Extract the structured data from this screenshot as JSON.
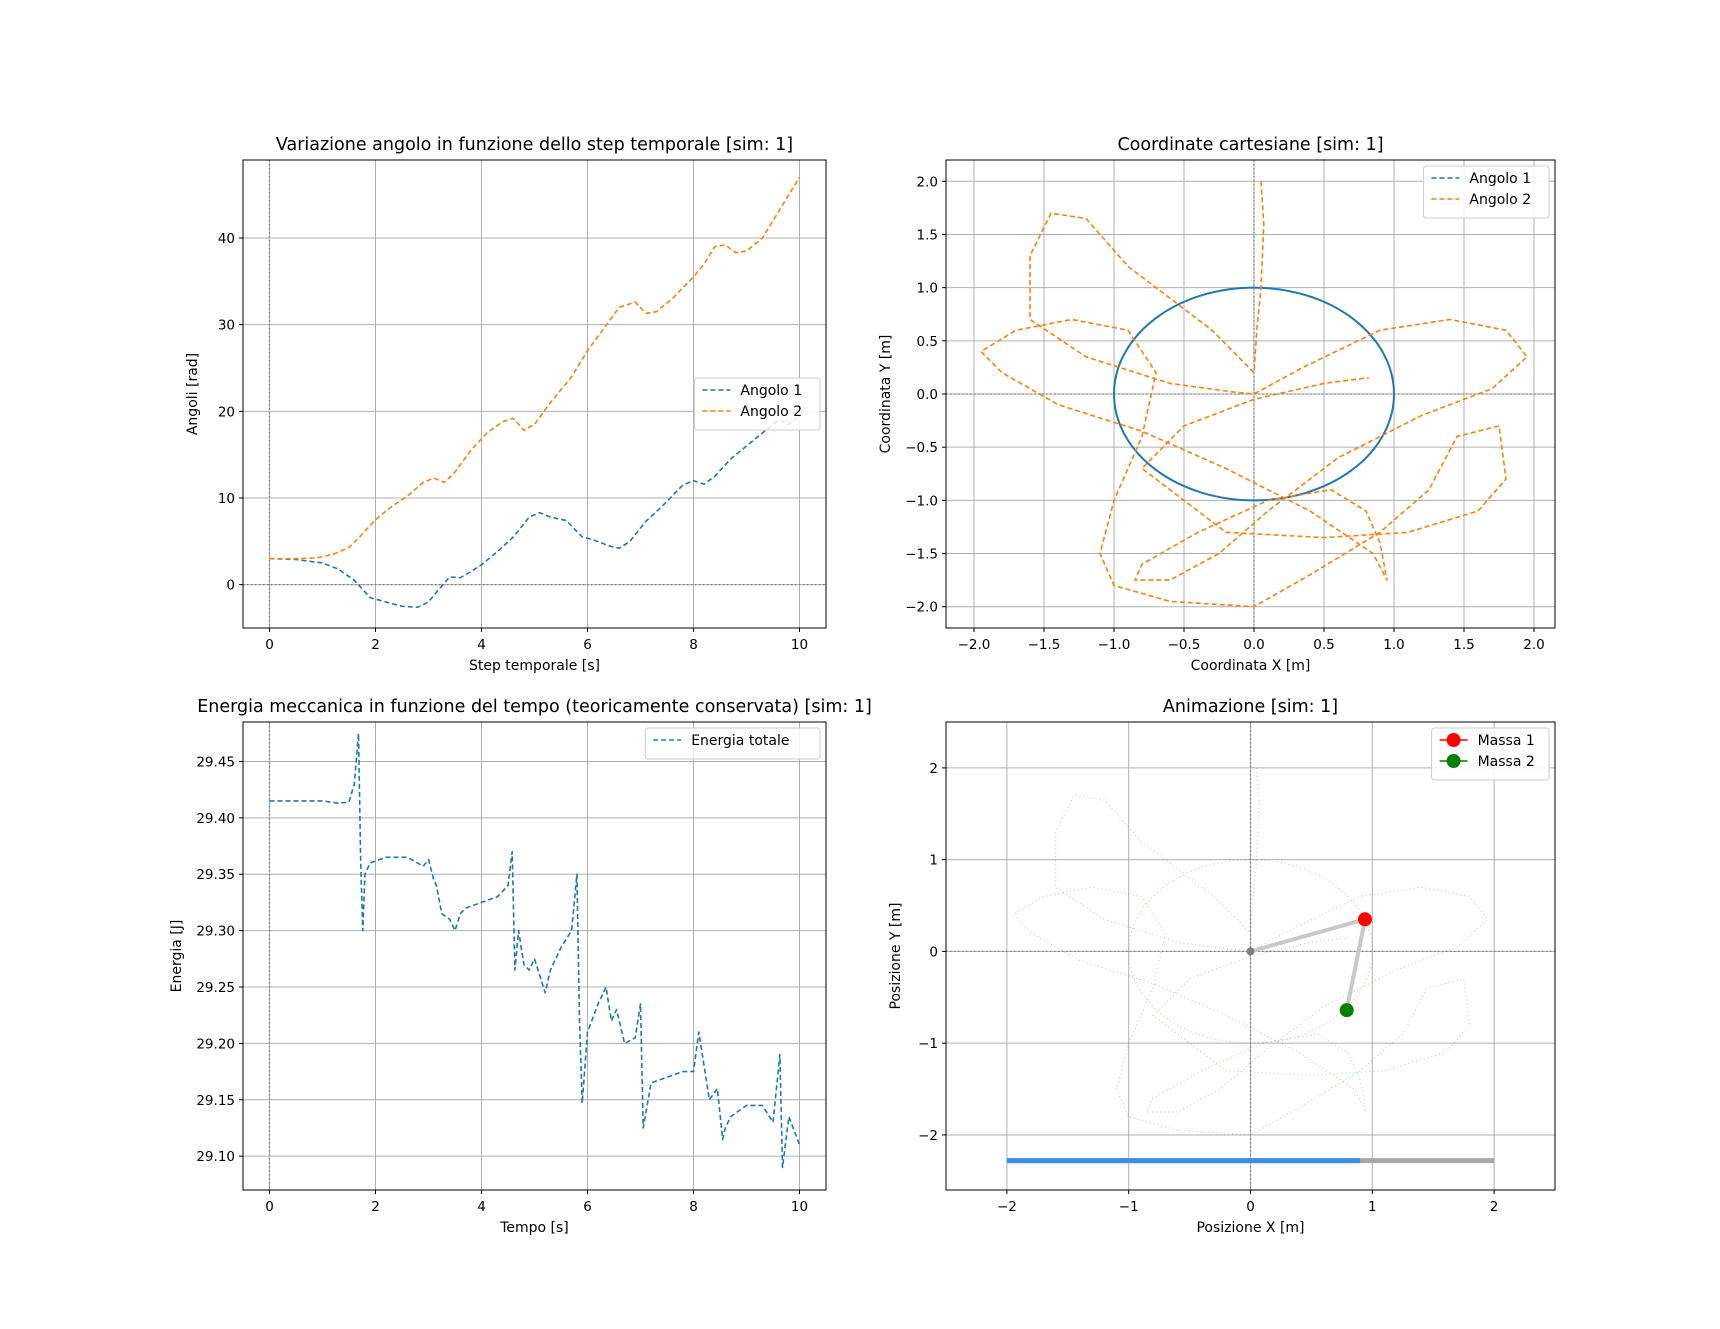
{
  "colors": {
    "blue": "#1f77b4",
    "orange": "#ff7f0e",
    "red": "#ff0000",
    "green": "#008000",
    "progress_fill": "#3a8ee6",
    "progress_track": "#a8a8a8",
    "arm": "#c8c8c8"
  },
  "chart_data": [
    {
      "type": "line",
      "title": "Variazione angolo in funzione dello step temporale [sim: 1]",
      "xlabel": "Step temporale [s]",
      "ylabel": "Angoli [rad]",
      "xlim": [
        -0.5,
        10.5
      ],
      "ylim": [
        -5,
        49
      ],
      "xticks": [
        0,
        2,
        4,
        6,
        8,
        10
      ],
      "xtick_labels": [
        "0",
        "2",
        "4",
        "6",
        "8",
        "10"
      ],
      "yticks": [
        0,
        10,
        20,
        30,
        40
      ],
      "ytick_labels": [
        "0",
        "10",
        "20",
        "30",
        "40"
      ],
      "grid": true,
      "legend_position": "center-right",
      "series": [
        {
          "name": "Angolo 1",
          "color": "#1f77b4",
          "style": "dashed",
          "x": [
            0,
            0.5,
            1,
            1.3,
            1.6,
            1.9,
            2.2,
            2.5,
            2.8,
            3.0,
            3.2,
            3.4,
            3.6,
            3.8,
            4.0,
            4.3,
            4.6,
            4.9,
            5.1,
            5.3,
            5.6,
            5.9,
            6.1,
            6.4,
            6.6,
            6.8,
            7.1,
            7.4,
            7.8,
            8.0,
            8.2,
            8.4,
            8.7,
            9.0,
            9.3,
            9.6,
            9.8,
            10.0
          ],
          "y": [
            3.0,
            2.9,
            2.5,
            1.8,
            0.5,
            -1.5,
            -2.0,
            -2.5,
            -2.6,
            -2.0,
            -0.5,
            0.9,
            0.8,
            1.5,
            2.3,
            3.8,
            5.5,
            7.8,
            8.3,
            7.8,
            7.4,
            5.5,
            5.2,
            4.5,
            4.2,
            5.0,
            7.3,
            9.0,
            11.5,
            12.0,
            11.6,
            12.5,
            14.5,
            16.0,
            17.5,
            19.0,
            18.5,
            19.5
          ]
        },
        {
          "name": "Angolo 2",
          "color": "#ff7f0e",
          "style": "dashed",
          "x": [
            0,
            0.5,
            0.9,
            1.2,
            1.5,
            1.7,
            2.0,
            2.3,
            2.6,
            2.9,
            3.1,
            3.3,
            3.5,
            3.8,
            4.1,
            4.4,
            4.6,
            4.8,
            5.0,
            5.3,
            5.7,
            6.0,
            6.3,
            6.6,
            6.9,
            7.1,
            7.3,
            7.6,
            8.0,
            8.2,
            8.4,
            8.6,
            8.8,
            9.0,
            9.3,
            9.6,
            9.8,
            10.0
          ],
          "y": [
            3.0,
            3.0,
            3.1,
            3.5,
            4.3,
            5.5,
            7.5,
            9.0,
            10.2,
            11.8,
            12.3,
            11.8,
            13.0,
            15.5,
            17.5,
            18.8,
            19.2,
            17.8,
            18.5,
            21.0,
            24.0,
            27.0,
            29.5,
            32.0,
            32.6,
            31.3,
            31.5,
            33.0,
            35.5,
            37.0,
            39.0,
            39.2,
            38.3,
            38.5,
            40.0,
            43.0,
            45.0,
            47.0
          ]
        }
      ]
    },
    {
      "type": "line",
      "title": "Coordinate cartesiane [sim: 1]",
      "xlabel": "Coordinata X [m]",
      "ylabel": "Coordinata Y [m]",
      "xlim": [
        -2.2,
        2.15
      ],
      "ylim": [
        -2.2,
        2.2
      ],
      "xticks": [
        -2.0,
        -1.5,
        -1.0,
        -0.5,
        0.0,
        0.5,
        1.0,
        1.5,
        2.0
      ],
      "xtick_labels": [
        "−2.0",
        "−1.5",
        "−1.0",
        "−0.5",
        "0.0",
        "0.5",
        "1.0",
        "1.5",
        "2.0"
      ],
      "yticks": [
        -2.0,
        -1.5,
        -1.0,
        -0.5,
        0.0,
        0.5,
        1.0,
        1.5,
        2.0
      ],
      "ytick_labels": [
        "−2.0",
        "−1.5",
        "−1.0",
        "−0.5",
        "0.0",
        "0.5",
        "1.0",
        "1.5",
        "2.0"
      ],
      "grid": true,
      "legend_position": "top-right",
      "series": [
        {
          "name": "Angolo 1",
          "color": "#1f77b4",
          "style": "dashed",
          "shape": "circle",
          "radius": 1.0,
          "center": [
            0,
            0
          ]
        },
        {
          "name": "Angolo 2",
          "color": "#ff7f0e",
          "style": "dashed",
          "x": [
            0.05,
            0.07,
            0.05,
            0.02,
            0.0,
            -0.3,
            -0.9,
            -1.2,
            -1.45,
            -1.6,
            -1.6,
            -1.2,
            -0.6,
            -0.15,
            0.0,
            0.35,
            0.9,
            1.4,
            1.8,
            1.95,
            1.7,
            1.2,
            0.6,
            0.1,
            -0.25,
            -0.6,
            -0.85,
            -0.8,
            -0.4,
            0.1,
            0.55,
            0.8,
            0.9,
            0.95,
            0.85,
            0.4,
            -0.2,
            -0.8,
            -1.4,
            -1.8,
            -1.95,
            -1.7,
            -1.3,
            -0.9,
            -0.7,
            -0.8,
            -1.0,
            -1.1,
            -1.0,
            -0.6,
            0.0,
            0.4,
            0.9,
            1.25,
            1.45,
            1.75,
            1.8,
            1.6,
            1.1,
            0.5,
            -0.2,
            -0.8,
            -0.5,
            0.0,
            0.5,
            0.8,
            0.82
          ],
          "y": [
            2.0,
            1.6,
            1.0,
            0.6,
            0.2,
            0.6,
            1.2,
            1.65,
            1.7,
            1.3,
            0.7,
            0.35,
            0.1,
            0.02,
            0.0,
            0.25,
            0.6,
            0.7,
            0.6,
            0.35,
            0.05,
            -0.2,
            -0.6,
            -1.1,
            -1.5,
            -1.75,
            -1.75,
            -1.6,
            -1.3,
            -1.0,
            -0.9,
            -1.1,
            -1.4,
            -1.75,
            -1.5,
            -1.1,
            -0.7,
            -0.35,
            -0.1,
            0.2,
            0.4,
            0.6,
            0.7,
            0.6,
            0.2,
            -0.4,
            -1.0,
            -1.5,
            -1.8,
            -1.95,
            -2.0,
            -1.7,
            -1.3,
            -0.9,
            -0.4,
            -0.3,
            -0.8,
            -1.1,
            -1.3,
            -1.35,
            -1.3,
            -0.7,
            -0.3,
            -0.05,
            0.1,
            0.15,
            0.15
          ]
        }
      ]
    },
    {
      "type": "line",
      "title": "Energia meccanica in funzione del tempo (teoricamente conservata) [sim: 1]",
      "xlabel": "Tempo [s]",
      "ylabel": "Energia [J]",
      "xlim": [
        -0.5,
        10.5
      ],
      "ylim": [
        29.07,
        29.485
      ],
      "xticks": [
        0,
        2,
        4,
        6,
        8,
        10
      ],
      "xtick_labels": [
        "0",
        "2",
        "4",
        "6",
        "8",
        "10"
      ],
      "yticks": [
        29.1,
        29.15,
        29.2,
        29.25,
        29.3,
        29.35,
        29.4,
        29.45
      ],
      "ytick_labels": [
        "29.10",
        "29.15",
        "29.20",
        "29.25",
        "29.30",
        "29.35",
        "29.40",
        "29.45"
      ],
      "grid": true,
      "legend_position": "top-right",
      "series": [
        {
          "name": "Energia totale",
          "color": "#1f77b4",
          "style": "dashed",
          "x": [
            0,
            0.5,
            1.0,
            1.3,
            1.5,
            1.6,
            1.68,
            1.72,
            1.76,
            1.8,
            1.9,
            2.2,
            2.6,
            2.9,
            3.0,
            3.1,
            3.15,
            3.25,
            3.4,
            3.5,
            3.6,
            3.7,
            4.0,
            4.3,
            4.5,
            4.58,
            4.63,
            4.7,
            4.8,
            4.9,
            5.0,
            5.2,
            5.3,
            5.5,
            5.7,
            5.8,
            5.85,
            5.9,
            6.0,
            6.2,
            6.35,
            6.45,
            6.55,
            6.7,
            6.9,
            7.0,
            7.05,
            7.2,
            7.5,
            7.8,
            8.0,
            8.1,
            8.2,
            8.3,
            8.45,
            8.55,
            8.6,
            8.7,
            9.0,
            9.3,
            9.5,
            9.63,
            9.68,
            9.8,
            10.0
          ],
          "y": [
            29.415,
            29.415,
            29.415,
            29.413,
            29.414,
            29.43,
            29.475,
            29.36,
            29.3,
            29.35,
            29.36,
            29.365,
            29.365,
            29.357,
            29.363,
            29.345,
            29.34,
            29.315,
            29.31,
            29.3,
            29.315,
            29.32,
            29.325,
            29.33,
            29.34,
            29.37,
            29.265,
            29.3,
            29.27,
            29.265,
            29.275,
            29.245,
            29.265,
            29.285,
            29.3,
            29.35,
            29.22,
            29.147,
            29.21,
            29.235,
            29.25,
            29.22,
            29.23,
            29.2,
            29.205,
            29.235,
            29.125,
            29.165,
            29.17,
            29.175,
            29.175,
            29.21,
            29.18,
            29.15,
            29.16,
            29.115,
            29.125,
            29.135,
            29.145,
            29.145,
            29.13,
            29.19,
            29.09,
            29.135,
            29.11
          ]
        }
      ]
    },
    {
      "type": "line",
      "title": "Animazione [sim: 1]",
      "xlabel": "Posizione X [m]",
      "ylabel": "Posizione Y [m]",
      "xlim": [
        -2.5,
        2.5
      ],
      "ylim": [
        -2.6,
        2.5
      ],
      "xticks": [
        -2,
        -1,
        0,
        1,
        2
      ],
      "xtick_labels": [
        "−2",
        "−1",
        "0",
        "1",
        "2"
      ],
      "yticks": [
        -2,
        -1,
        0,
        1,
        2
      ],
      "ytick_labels": [
        "−2",
        "−1",
        "0",
        "1",
        "2"
      ],
      "grid": true,
      "legend_position": "top-right",
      "series": [
        {
          "name": "Massa 1",
          "color": "#ff0000",
          "marker": "circle",
          "point": [
            0.94,
            0.35
          ]
        },
        {
          "name": "Massa 2",
          "color": "#008000",
          "marker": "circle",
          "point": [
            0.79,
            -0.64
          ]
        }
      ],
      "pivot": [
        0,
        0
      ],
      "progress": {
        "range": [
          -2,
          2
        ],
        "value": 0.9,
        "y": -2.28
      }
    }
  ]
}
